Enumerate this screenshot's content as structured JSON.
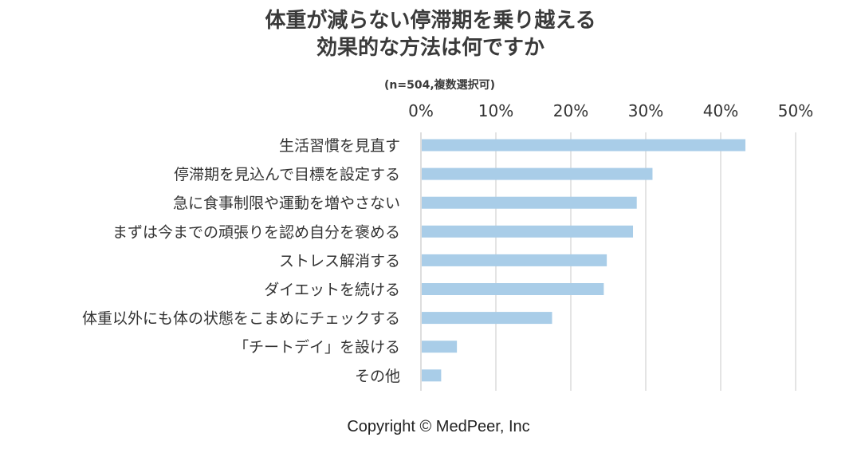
{
  "chart_data": {
    "type": "bar",
    "orientation": "horizontal",
    "title": [
      "体重が減らない停滞期を乗り越える",
      "効果的な方法は何ですか"
    ],
    "note": "(n=504,複数選択可)",
    "xlim": [
      0,
      50
    ],
    "xticks": [
      0,
      10,
      20,
      30,
      40,
      50
    ],
    "tick_suffix": "%",
    "grid": true,
    "categories": [
      "生活習慣を見直す",
      "停滞期を見込んで目標を設定する",
      "急に食事制限や運動を増やさない",
      "まずは今までの頑張りを認め自分を褒める",
      "ストレス解消する",
      "ダイエットを続ける",
      "体重以外にも体の状態をこまめにチェックする",
      "「チートデイ」を設ける",
      "その他"
    ],
    "values": [
      43.3,
      30.9,
      28.8,
      28.3,
      24.8,
      24.4,
      17.5,
      4.8,
      2.7
    ],
    "bar_color": "#a9cde8"
  },
  "footer": {
    "copyright": "Copyright © MedPeer, Inc"
  }
}
